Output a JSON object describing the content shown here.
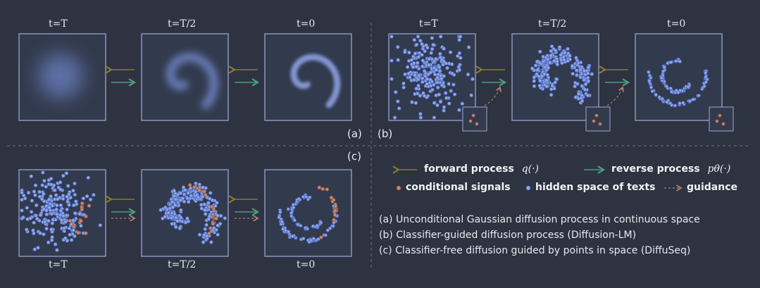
{
  "panel_a": {
    "labels": [
      "t=T",
      "t=T/2",
      "t=0"
    ],
    "tag": "(a)"
  },
  "panel_b": {
    "labels": [
      "t=T",
      "t=T/2",
      "t=0"
    ],
    "tag": "(b)"
  },
  "panel_c": {
    "labels": [
      "t=T",
      "t=T/2",
      "t=0"
    ],
    "tag": "(c)"
  },
  "legend": {
    "forward": "forward process",
    "forward_math": "q(·)",
    "reverse": "reverse process",
    "reverse_math": "pθ(·)",
    "conditional": "conditional signals",
    "hidden": "hidden space of texts",
    "guidance": "guidance"
  },
  "captions": [
    "(a) Unconditional Gaussian diffusion process in continuous space",
    "(b) Classifier-guided diffusion process (Diffusion-LM)",
    "(c) Classifier-free diffusion guided by points in space (DiffuSeq)"
  ],
  "colors": {
    "background": "#2d3340",
    "frame": "#8c95bd",
    "forward_arrow": "#8a7a2c",
    "reverse_arrow": "#4e9a82",
    "guidance_arrow": "#b0806c",
    "point_fill": "#8fa6e6",
    "point_stroke": "#4a64b8",
    "signal_fill": "#c9876e"
  }
}
